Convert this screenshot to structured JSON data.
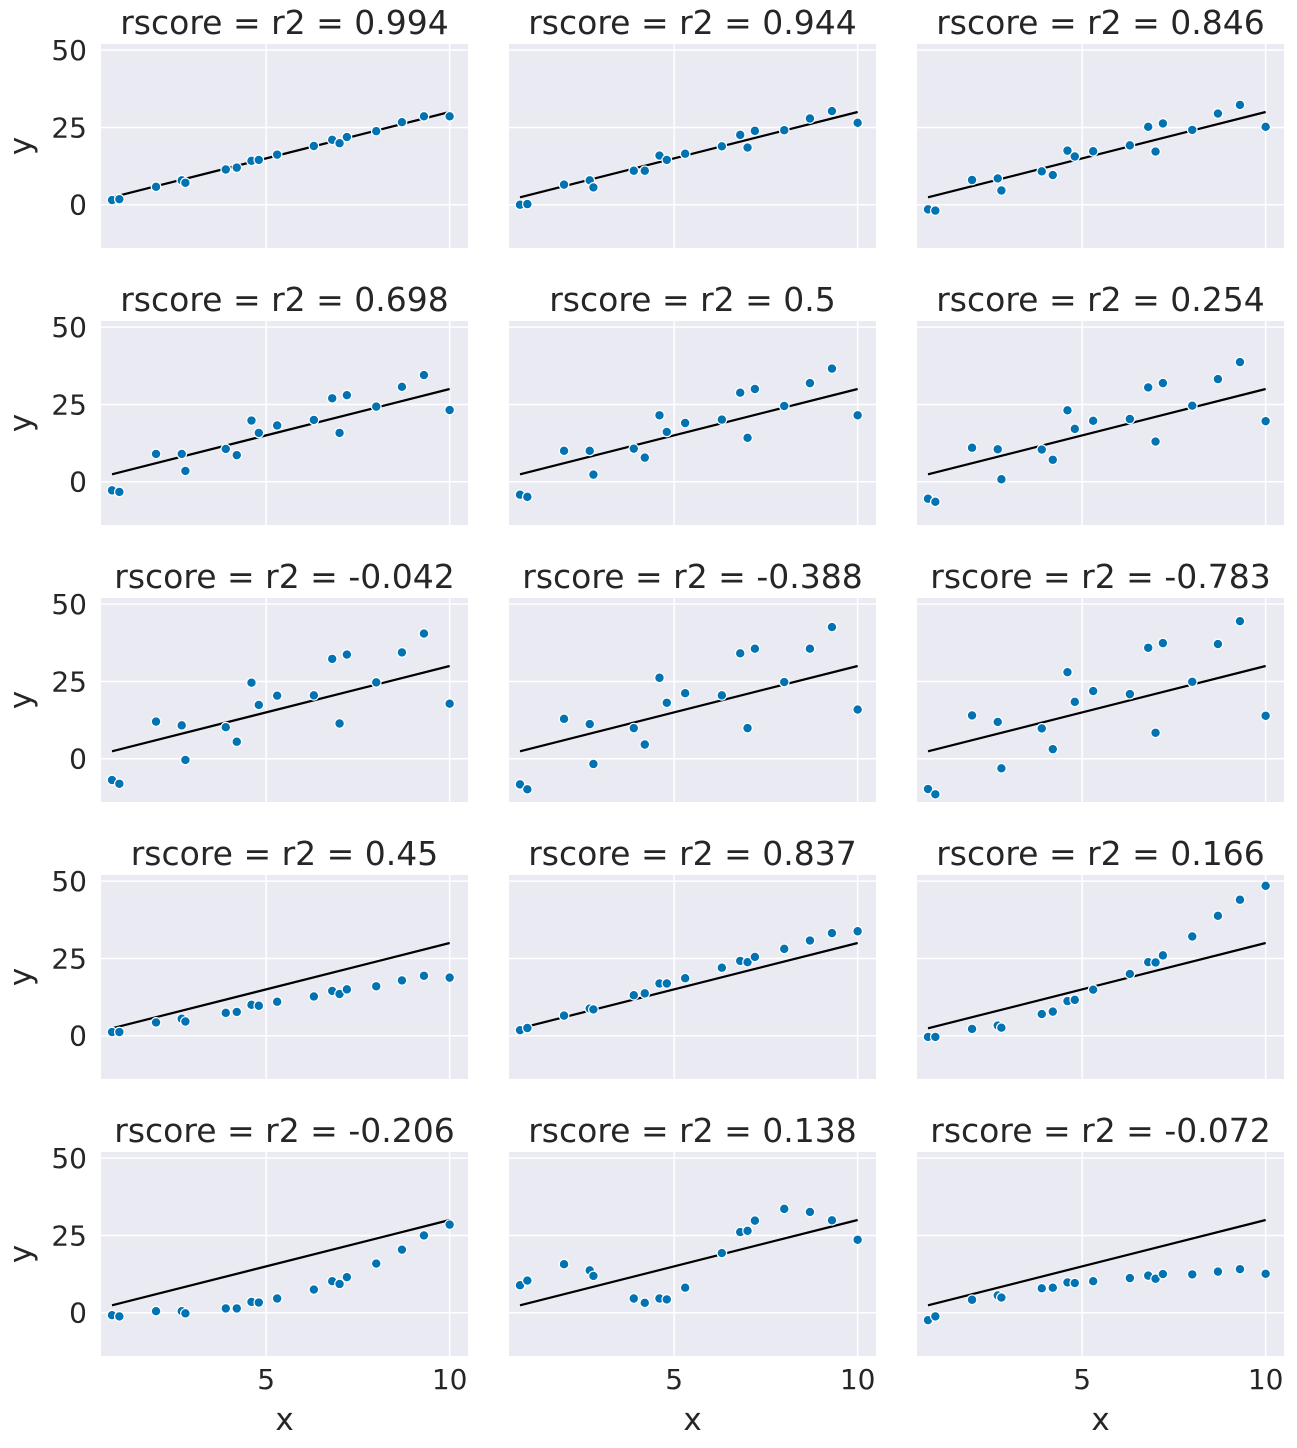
{
  "chart_data": {
    "type": "scatter",
    "layout": "5x3 facet grid, shared x and y axes",
    "xlabel": "x",
    "ylabel": "y",
    "xlim": [
      0.5,
      10.5
    ],
    "ylim": [
      -14,
      52
    ],
    "xticks": [
      5,
      10
    ],
    "yticks": [
      0,
      25,
      50
    ],
    "grid": true,
    "colors": {
      "background": "#eaeaf2",
      "grid": "#ffffff",
      "points": "#0173b2",
      "point_edge": "#ffffff",
      "line": "#000000"
    },
    "x": [
      0.8,
      1.0,
      2.0,
      2.7,
      2.8,
      3.9,
      4.2,
      4.6,
      4.8,
      5.3,
      6.3,
      6.8,
      7.0,
      7.2,
      8.0,
      8.7,
      9.3,
      10.0
    ],
    "regression_line": {
      "slope": 3.0,
      "intercept": 0.0
    },
    "panels": [
      {
        "title": "rscore = r2 = 0.994",
        "y": [
          1.5,
          1.8,
          5.8,
          7.9,
          7.1,
          11.4,
          12.0,
          14.2,
          14.5,
          16.2,
          19.0,
          21.0,
          19.9,
          21.9,
          23.8,
          26.7,
          28.6,
          28.6
        ]
      },
      {
        "title": "rscore = r2 = 0.944",
        "y": [
          0.0,
          0.2,
          6.5,
          7.9,
          5.6,
          11.0,
          11.0,
          15.9,
          14.5,
          16.5,
          18.9,
          22.6,
          18.5,
          23.9,
          24.1,
          27.9,
          30.3,
          26.5
        ]
      },
      {
        "title": "rscore = r2 = 0.846",
        "y": [
          -1.5,
          -1.9,
          8.0,
          8.5,
          4.6,
          10.8,
          9.6,
          17.5,
          15.6,
          17.3,
          19.2,
          25.2,
          17.2,
          26.3,
          24.2,
          29.5,
          32.3,
          25.2
        ]
      },
      {
        "title": "rscore = r2 = 0.698",
        "y": [
          -2.8,
          -3.3,
          9.0,
          9.0,
          3.5,
          10.6,
          8.6,
          19.8,
          15.8,
          18.2,
          20.0,
          27.0,
          15.8,
          28.0,
          24.3,
          30.7,
          34.5,
          23.2
        ]
      },
      {
        "title": "rscore = r2 = 0.5",
        "y": [
          -4.2,
          -4.9,
          10.0,
          10.0,
          2.3,
          10.7,
          7.8,
          21.5,
          16.1,
          19.0,
          20.1,
          28.8,
          14.2,
          30.0,
          24.5,
          31.9,
          36.6,
          21.5
        ]
      },
      {
        "title": "rscore = r2 = 0.254",
        "y": [
          -5.5,
          -6.5,
          11.0,
          10.5,
          0.8,
          10.4,
          7.1,
          23.1,
          17.1,
          19.7,
          20.3,
          30.5,
          13.0,
          31.9,
          24.6,
          33.2,
          38.7,
          19.6
        ]
      },
      {
        "title": "rscore = r2 = -0.042",
        "y": [
          -6.9,
          -8.1,
          12.0,
          10.8,
          -0.4,
          10.2,
          5.5,
          24.6,
          17.4,
          20.4,
          20.5,
          32.3,
          11.4,
          33.7,
          24.7,
          34.4,
          40.5,
          17.8
        ]
      },
      {
        "title": "rscore = r2 = -0.388",
        "y": [
          -8.3,
          -9.9,
          12.9,
          11.2,
          -1.7,
          9.9,
          4.6,
          26.2,
          18.1,
          21.2,
          20.5,
          34.1,
          9.9,
          35.6,
          24.8,
          35.6,
          42.6,
          15.9
        ]
      },
      {
        "title": "rscore = r2 = -0.783",
        "y": [
          -9.8,
          -11.5,
          14.0,
          11.9,
          -3.1,
          9.8,
          3.1,
          28.0,
          18.4,
          21.9,
          20.9,
          35.9,
          8.4,
          37.4,
          24.9,
          37.1,
          44.5,
          13.9
        ]
      },
      {
        "title": "rscore = r2 = 0.45",
        "y": [
          1.2,
          1.2,
          4.3,
          5.5,
          4.6,
          7.4,
          7.7,
          10.0,
          9.7,
          11.0,
          12.7,
          14.5,
          13.5,
          15.0,
          16.0,
          17.9,
          19.4,
          18.8
        ]
      },
      {
        "title": "rscore = r2 = 0.837",
        "y": [
          1.8,
          2.5,
          6.5,
          8.8,
          8.5,
          13.1,
          13.7,
          16.9,
          16.9,
          18.6,
          22.0,
          24.2,
          23.8,
          25.5,
          28.1,
          30.8,
          33.2,
          33.8
        ]
      },
      {
        "title": "rscore = r2 = 0.166",
        "y": [
          -0.4,
          -0.4,
          2.2,
          3.3,
          2.6,
          7.0,
          7.8,
          11.2,
          11.6,
          14.9,
          20.0,
          23.8,
          23.7,
          26.0,
          32.1,
          38.8,
          44.0,
          48.5
        ]
      },
      {
        "title": "rscore = r2 = -0.206",
        "y": [
          -0.8,
          -1.2,
          0.5,
          0.5,
          -0.2,
          1.4,
          1.4,
          3.5,
          3.3,
          4.6,
          7.5,
          10.2,
          9.3,
          11.5,
          15.9,
          20.4,
          25.0,
          28.5
        ]
      },
      {
        "title": "rscore = r2 = 0.138",
        "y": [
          8.9,
          10.4,
          15.7,
          13.7,
          11.9,
          4.6,
          3.2,
          4.6,
          4.3,
          8.1,
          19.3,
          26.1,
          26.5,
          29.8,
          33.6,
          32.6,
          29.9,
          23.6
        ]
      },
      {
        "title": "rscore = r2 = -0.072",
        "y": [
          -2.4,
          -1.2,
          4.2,
          5.6,
          4.9,
          7.9,
          8.1,
          9.8,
          9.6,
          10.2,
          11.2,
          12.0,
          11.0,
          12.5,
          12.4,
          13.3,
          14.1,
          12.6
        ]
      }
    ]
  }
}
